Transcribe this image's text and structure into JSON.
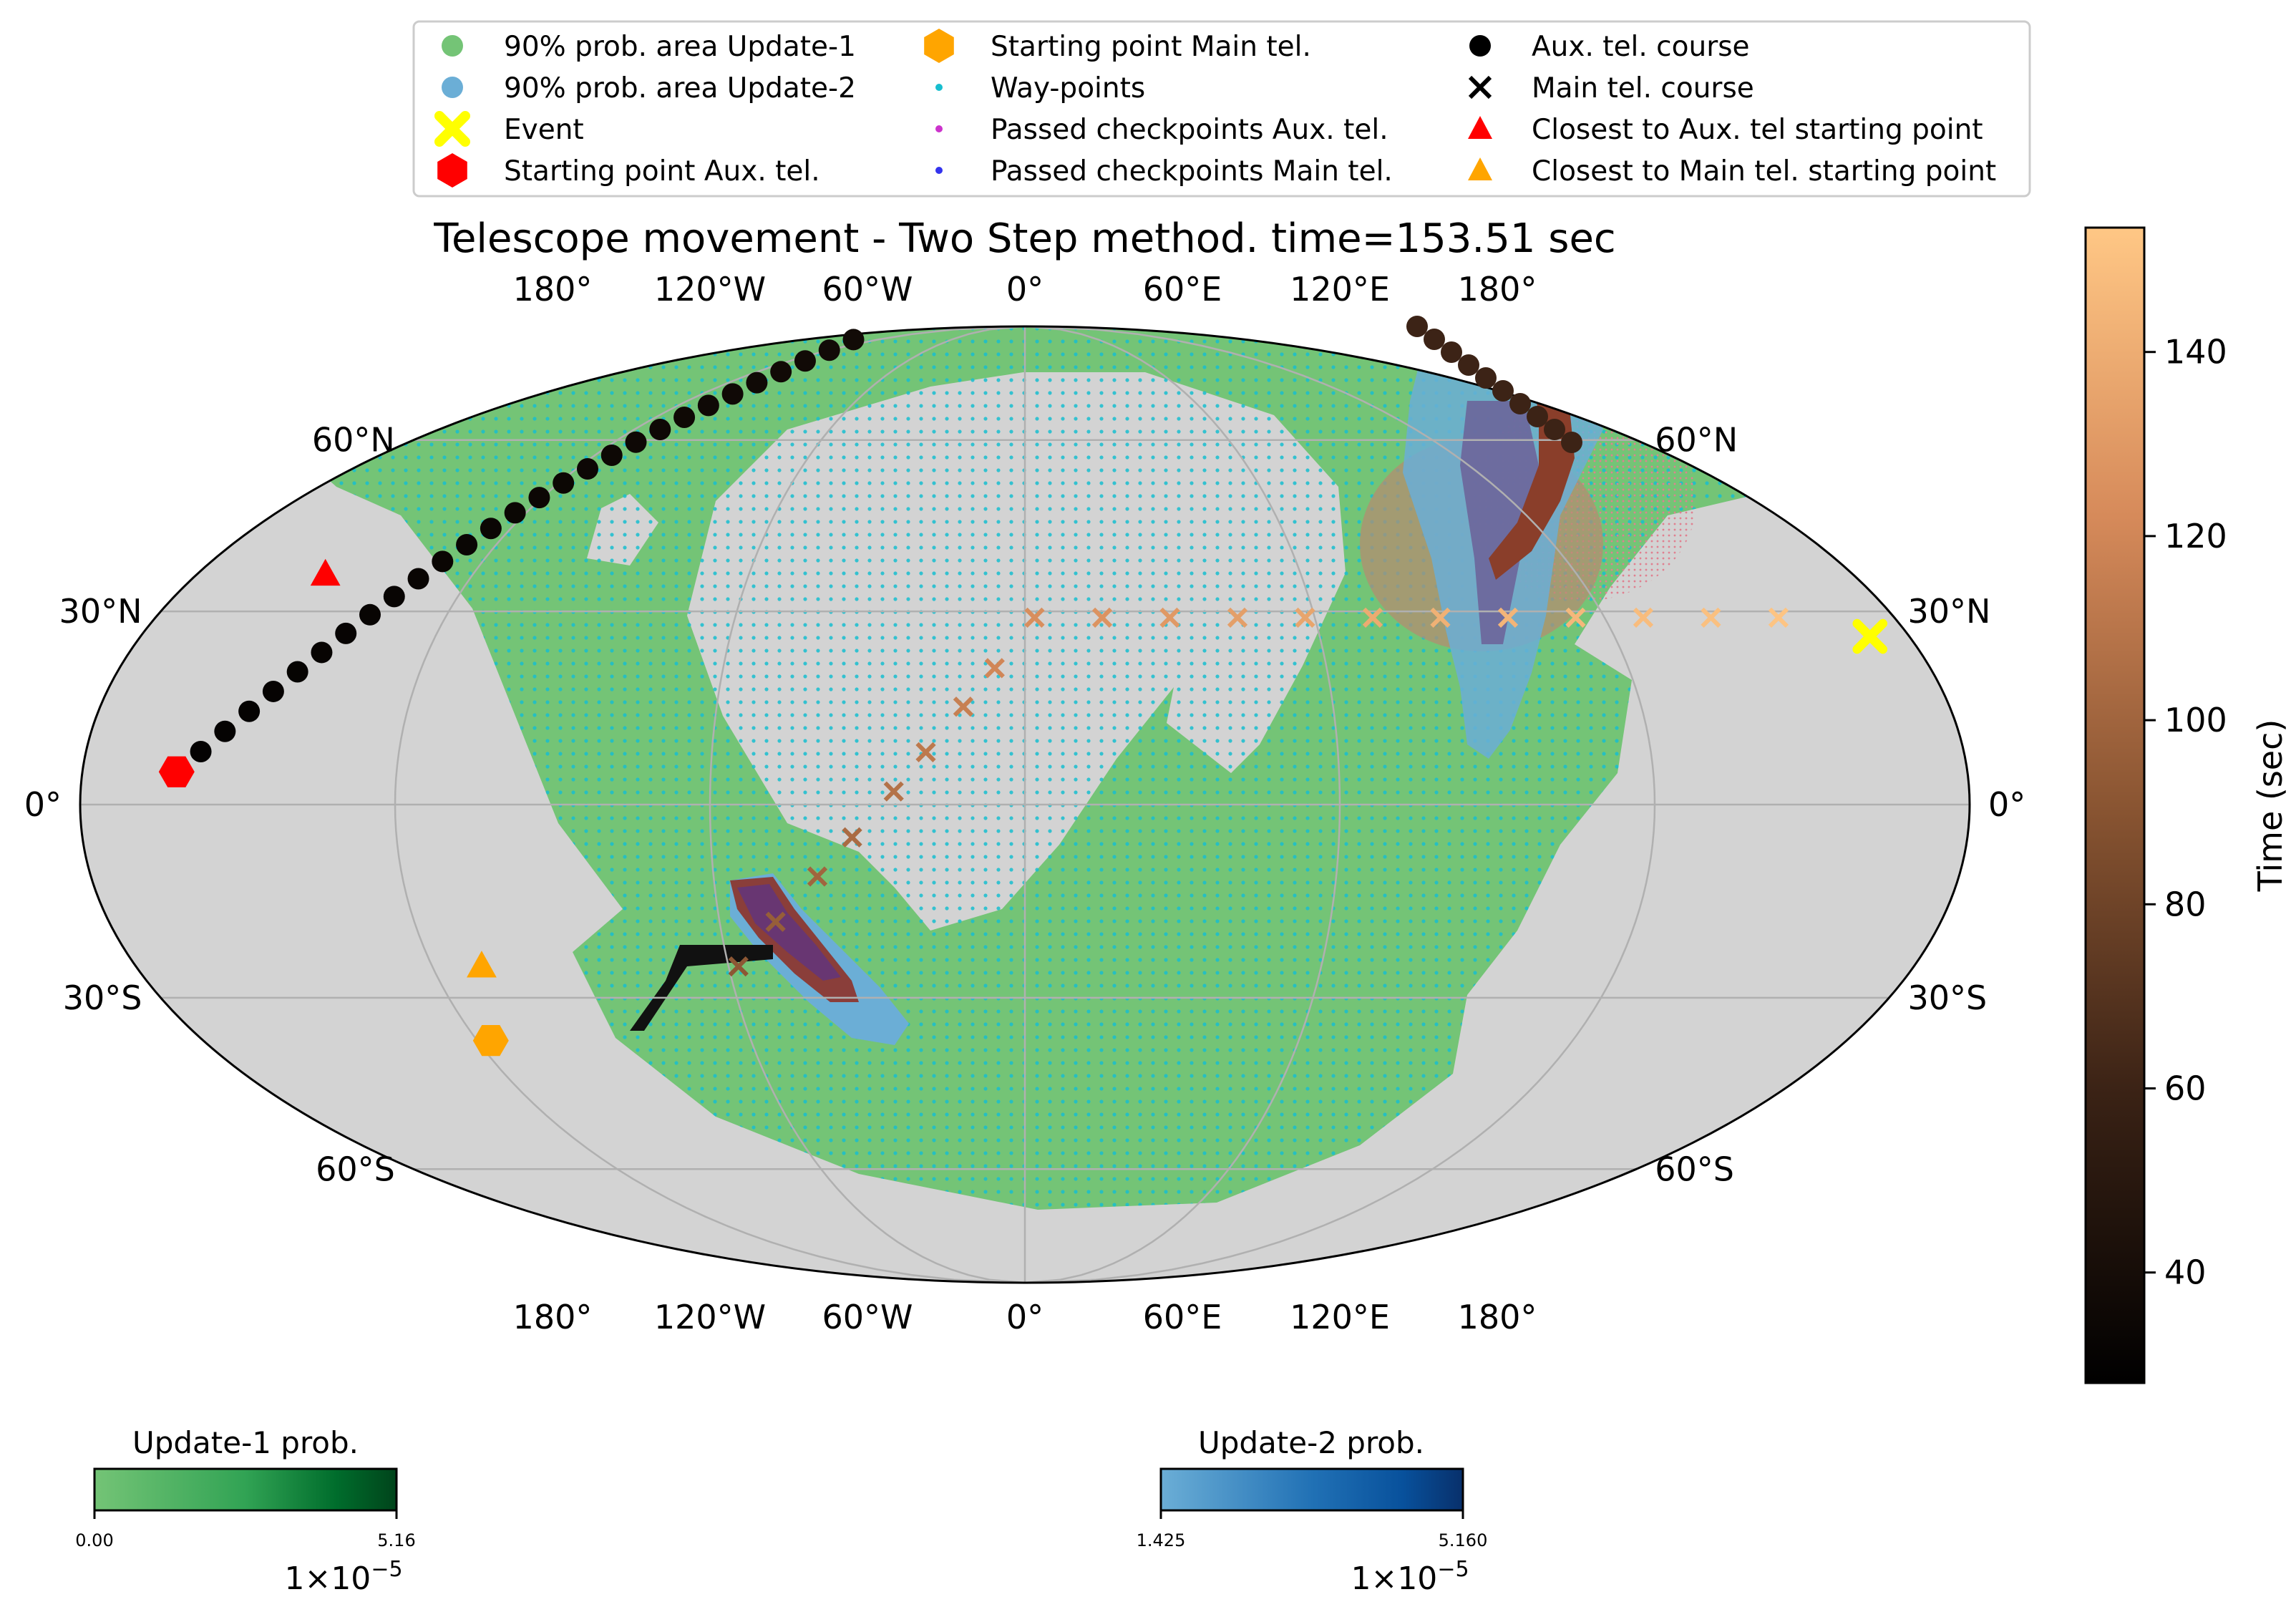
{
  "chart_data": {
    "type": "scatter",
    "projection": "mollweide",
    "title": "Telescope movement - Two Step method. time=153.51 sec",
    "lon_ticks": [
      "180°",
      "120°W",
      "60°W",
      "0°",
      "60°E",
      "120°E",
      "180°"
    ],
    "lat_ticks_left": [
      "60°N",
      "30°N",
      "0°",
      "30°S",
      "60°S"
    ],
    "lat_ticks_right": [
      "60°N",
      "30°N",
      "0°",
      "30°S",
      "60°S"
    ],
    "grid": true,
    "legend_position": "top",
    "legend": [
      {
        "label": "90% prob. area Update-1",
        "marker": "circle",
        "color": "#74c476"
      },
      {
        "label": "90% prob. area Update-2",
        "marker": "circle",
        "color": "#6baed6"
      },
      {
        "label": "Event",
        "marker": "x-bold",
        "color": "#ffff00"
      },
      {
        "label": "Starting point Aux. tel.",
        "marker": "hexagon",
        "color": "#ff0000"
      },
      {
        "label": "Starting point Main tel.",
        "marker": "hexagon",
        "color": "#ffa500"
      },
      {
        "label": "Way-points",
        "marker": "dot",
        "color": "#17becf"
      },
      {
        "label": "Passed checkpoints  Aux. tel.",
        "marker": "dot",
        "color": "#cc33cc"
      },
      {
        "label": "Passed checkpoints Main tel.",
        "marker": "dot",
        "color": "#3333ee"
      },
      {
        "label": "Aux. tel. course",
        "marker": "circle",
        "color": "#000000"
      },
      {
        "label": "Main tel. course",
        "marker": "x",
        "color": "#000000"
      },
      {
        "label": "Closest to  Aux. tel starting point",
        "marker": "triangle",
        "color": "#ff0000"
      },
      {
        "label": "Closest to   Main tel. starting point",
        "marker": "triangle",
        "color": "#ffa500"
      }
    ],
    "event": {
      "lon": 172,
      "lat": 26
    },
    "aux_start": {
      "lon": -162,
      "lat": 5
    },
    "main_start": {
      "lon": -117,
      "lat": -37
    },
    "aux_closest": {
      "lon": -152,
      "lat": 36
    },
    "main_closest": {
      "lon": -110,
      "lat": -25
    },
    "main_course": [
      {
        "lon": -58,
        "lat": -25,
        "t": 92
      },
      {
        "lon": -49,
        "lat": -18,
        "t": 96
      },
      {
        "lon": -40,
        "lat": -11,
        "t": 100
      },
      {
        "lon": -33,
        "lat": -5,
        "t": 104
      },
      {
        "lon": -25,
        "lat": 2,
        "t": 108
      },
      {
        "lon": -19,
        "lat": 8,
        "t": 112
      },
      {
        "lon": -12,
        "lat": 15,
        "t": 116
      },
      {
        "lon": -6,
        "lat": 21,
        "t": 120
      },
      {
        "lon": 2,
        "lat": 29,
        "t": 124
      },
      {
        "lon": 16,
        "lat": 29,
        "t": 127
      },
      {
        "lon": 30,
        "lat": 29,
        "t": 130
      },
      {
        "lon": 44,
        "lat": 29,
        "t": 133
      },
      {
        "lon": 58,
        "lat": 29,
        "t": 136
      },
      {
        "lon": 72,
        "lat": 29,
        "t": 139
      },
      {
        "lon": 86,
        "lat": 29,
        "t": 142
      },
      {
        "lon": 100,
        "lat": 29,
        "t": 144
      },
      {
        "lon": 114,
        "lat": 29,
        "t": 146
      },
      {
        "lon": 128,
        "lat": 29,
        "t": 148
      },
      {
        "lon": 142,
        "lat": 29,
        "t": 150
      },
      {
        "lon": 156,
        "lat": 29,
        "t": 152
      }
    ],
    "aux_course_t_range": [
      30,
      70
    ],
    "colorbar_time": {
      "label": "Time (sec)",
      "ticks": [
        "40",
        "60",
        "80",
        "100",
        "120",
        "140"
      ],
      "min": 28,
      "max": 153.51
    },
    "colorbar_update1": {
      "title": "Update-1 prob.",
      "min_label": "0.00",
      "max_label": "5.16",
      "scale": "1×10",
      "exponent": "−5"
    },
    "colorbar_update2": {
      "title": "Update-2 prob.",
      "min_label": "1.425",
      "max_label": "5.160",
      "scale": "1×10",
      "exponent": "−5"
    }
  }
}
